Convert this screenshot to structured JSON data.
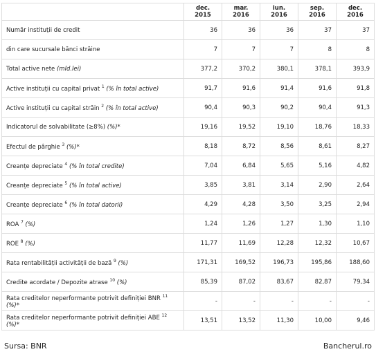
{
  "table": {
    "columns": [
      "dec. 2015",
      "mar. 2016",
      "iun. 2016",
      "sep. 2016",
      "dec. 2016"
    ],
    "rows": [
      {
        "label": "Număr instituții de credit",
        "values": [
          "36",
          "36",
          "36",
          "37",
          "37"
        ]
      },
      {
        "label": " din care sucursale bănci străine",
        "values": [
          "7",
          "7",
          "7",
          "8",
          "8"
        ]
      },
      {
        "label": "Total active nete",
        "unit": "(mld.lei)",
        "values": [
          "377,2",
          "370,2",
          "380,1",
          "378,1",
          "393,9"
        ]
      },
      {
        "label": "Active instituții cu capital privat",
        "note": "1",
        "unit": "(% în total active)",
        "values": [
          "91,7",
          "91,6",
          "91,4",
          "91,6",
          "91,8"
        ]
      },
      {
        "label": "Active instituții cu capital străin",
        "note": "2",
        "unit": "(% în total active)",
        "values": [
          "90,4",
          "90,3",
          "90,2",
          "90,4",
          "91,3"
        ]
      },
      {
        "label": "Indicatorul de solvabilitate (≥8%)",
        "unit": "(%)*",
        "values": [
          "19,16",
          "19,52",
          "19,10",
          "18,76",
          "18,33"
        ]
      },
      {
        "label": "Efectul de pârghie",
        "note": "3",
        "unit": "(%)*",
        "values": [
          "8,18",
          "8,72",
          "8,56",
          "8,61",
          "8,27"
        ]
      },
      {
        "label": "Creanțe depreciate",
        "note": "4",
        "unit": "(% în total credite)",
        "values": [
          "7,04",
          "6,84",
          "5,65",
          "5,16",
          "4,82"
        ]
      },
      {
        "label": "Creanțe depreciate",
        "note": "5",
        "unit": "(% în total active)",
        "values": [
          "3,85",
          "3,81",
          "3,14",
          "2,90",
          "2,64"
        ]
      },
      {
        "label": "Creanțe depreciate",
        "note": "6",
        "unit": "(% în total datorii)",
        "values": [
          "4,29",
          "4,28",
          "3,50",
          "3,25",
          "2,94"
        ]
      },
      {
        "label": "ROA",
        "note": "7",
        "unit": "(%)",
        "values": [
          "1,24",
          "1,26",
          "1,27",
          "1,30",
          "1,10"
        ]
      },
      {
        "label": "ROE",
        "note": "8",
        "unit": "(%)",
        "values": [
          "11,77",
          "11,69",
          "12,28",
          "12,32",
          "10,67"
        ]
      },
      {
        "label": "Rata rentabilității activității de bază",
        "note": "9",
        "unit": "(%)",
        "values": [
          "171,31",
          "169,52",
          "196,73",
          "195,86",
          "188,60"
        ]
      },
      {
        "label": "Credite acordate / Depozite atrase",
        "note": "10",
        "unit": "(%)",
        "values": [
          "85,39",
          "87,02",
          "83,67",
          "82,87",
          "79,34"
        ]
      },
      {
        "label": "Rata creditelor neperformante potrivit definiției BNR",
        "note": "11",
        "unit": "(%)*",
        "values": [
          "-",
          "-",
          "-",
          "-",
          "-"
        ]
      },
      {
        "label": "Rata creditelor neperformante potrivit definiției ABE",
        "note": "12",
        "unit": "(%)*",
        "values": [
          "13,51",
          "13,52",
          "11,30",
          "10,00",
          "9,46"
        ]
      }
    ]
  },
  "footer": {
    "source": "Sursa: BNR",
    "site": "Bancherul.ro"
  }
}
